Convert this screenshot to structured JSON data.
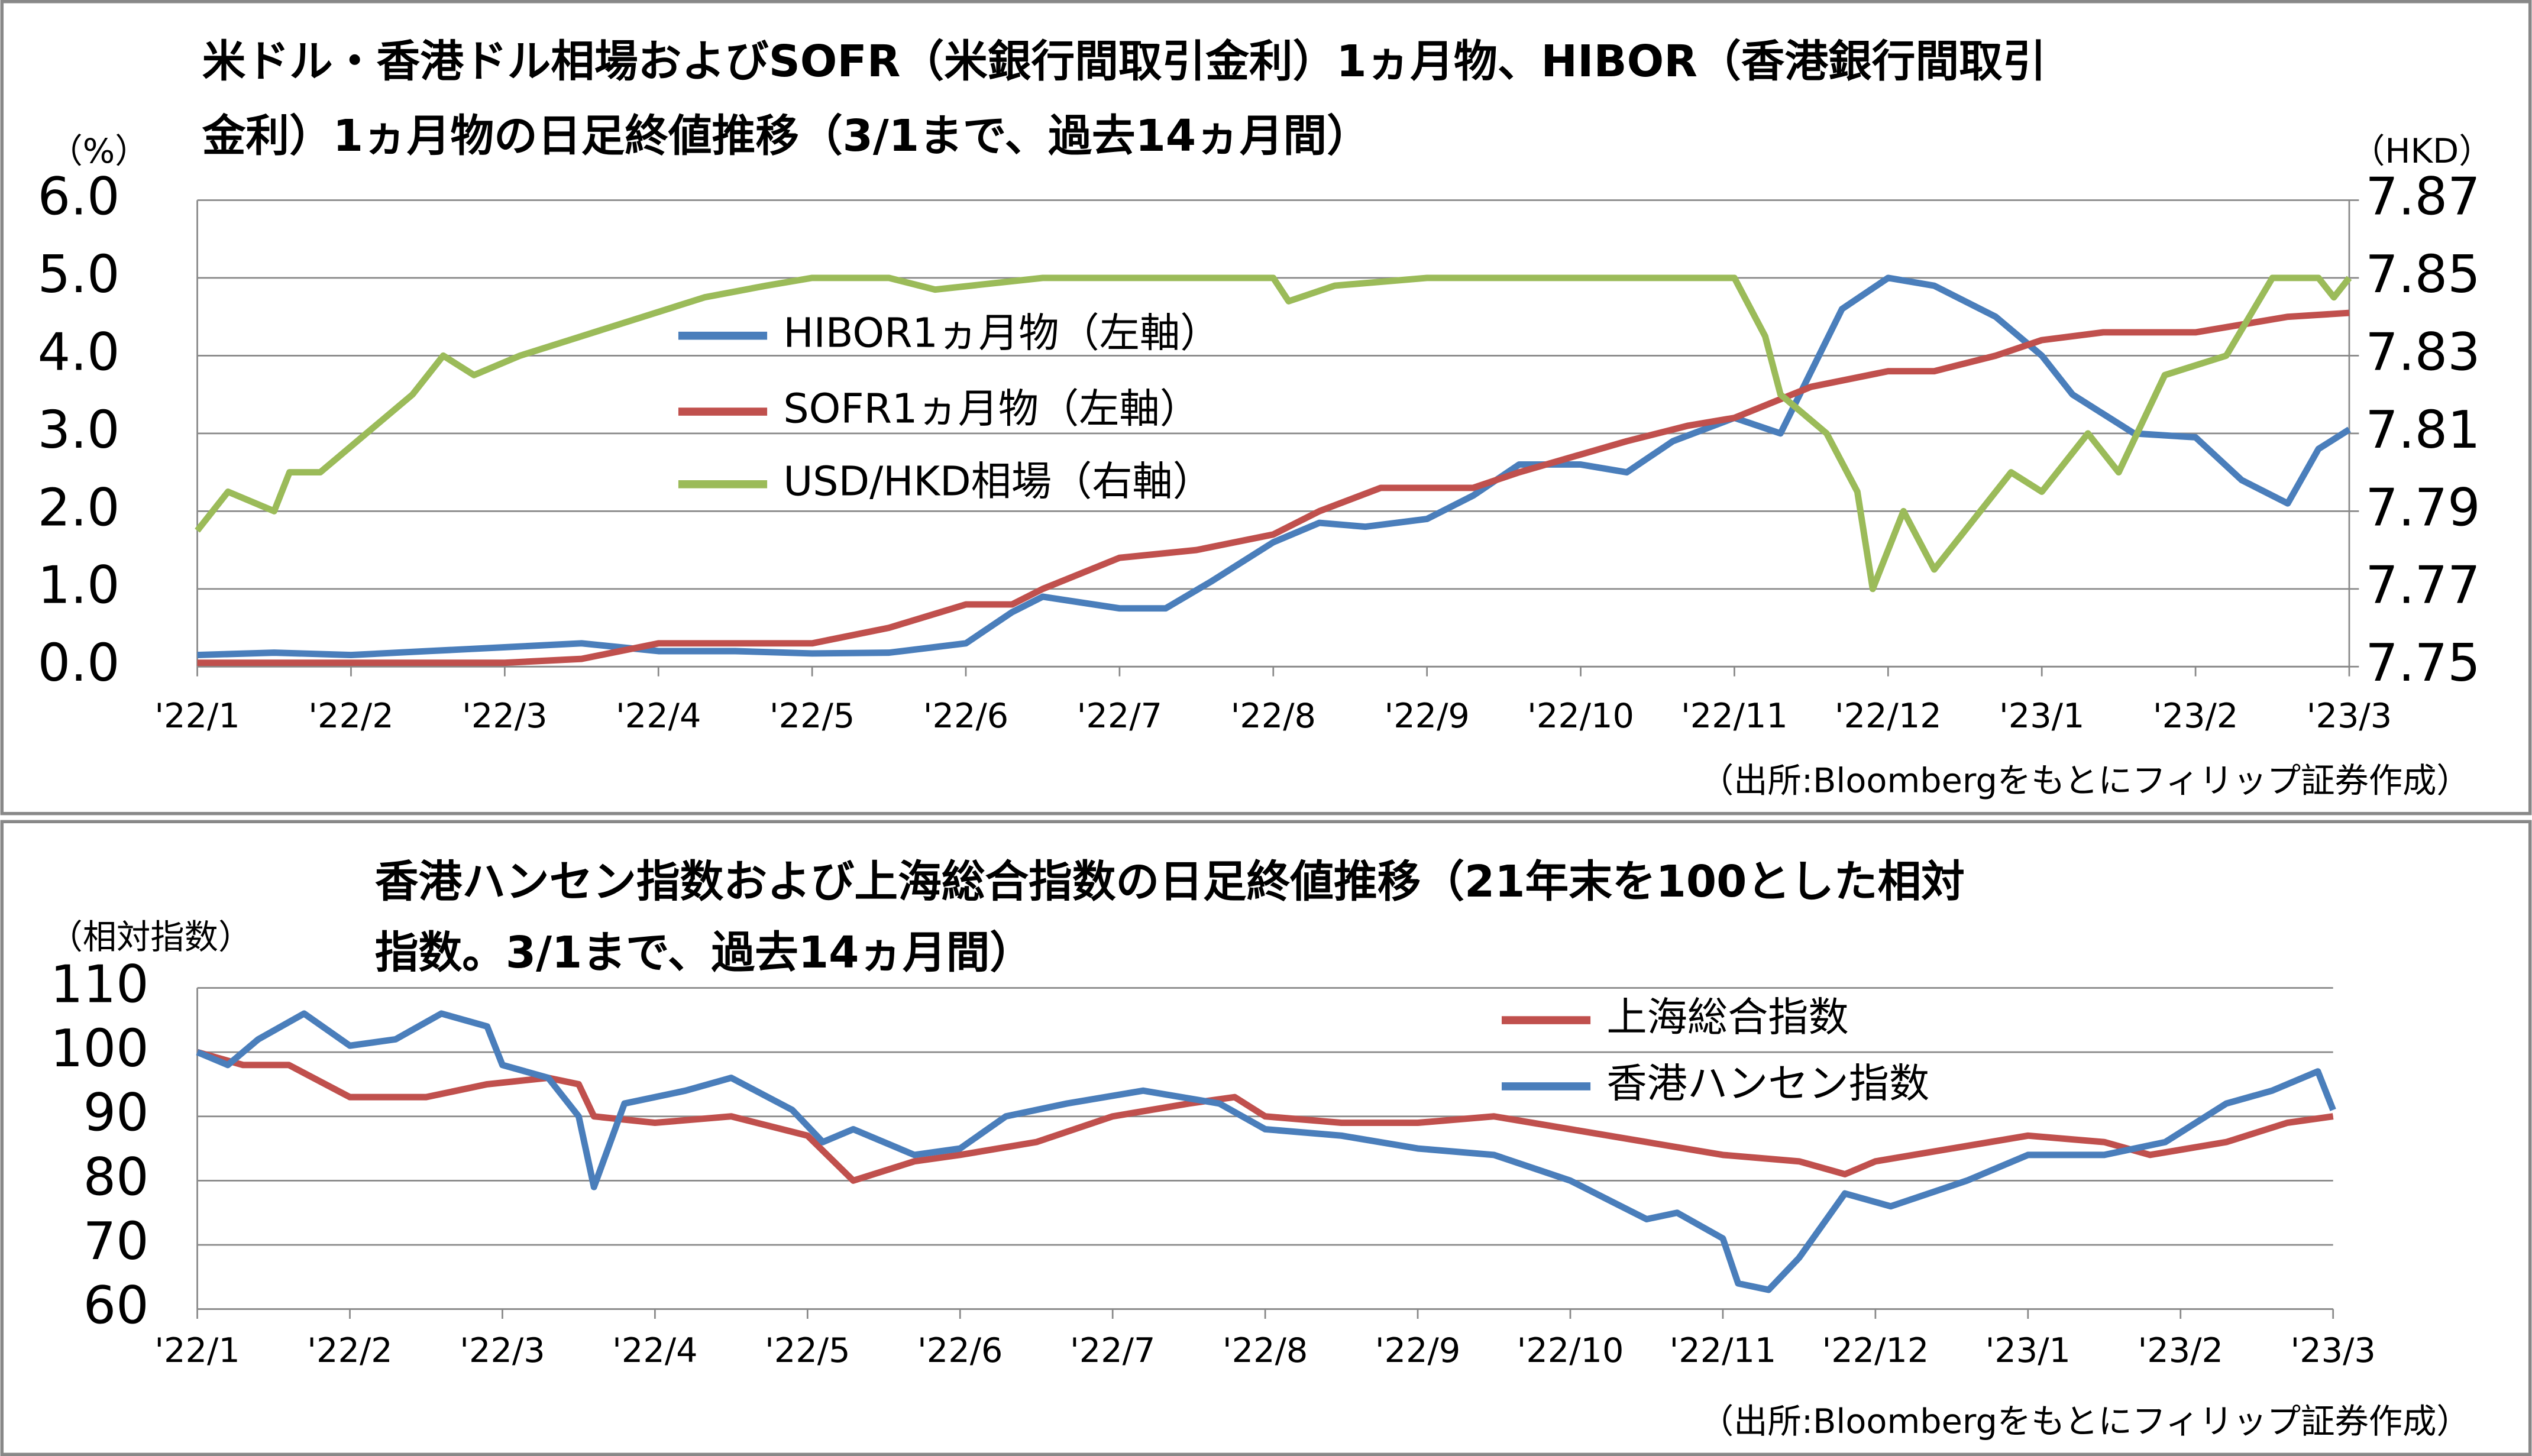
{
  "chart_data": [
    {
      "type": "line",
      "title": [
        "米ドル・香港ドル相場およびSOFR（米銀行間取引金利）1ヵ月物、HIBOR（香港銀行間取引",
        "金利）1ヵ月物の日足終値推移（3/1まで、過去14ヵ月間）"
      ],
      "y_label": "（%）",
      "y2_label": "（HKD）",
      "source": "（出所:Bloombergをもとにフィリップ証券作成）",
      "xlim": [
        0,
        14
      ],
      "xticks": [
        {
          "value": 0,
          "label": "'22/1"
        },
        {
          "value": 1,
          "label": "'22/2"
        },
        {
          "value": 2,
          "label": "'22/3"
        },
        {
          "value": 3,
          "label": "'22/4"
        },
        {
          "value": 4,
          "label": "'22/5"
        },
        {
          "value": 5,
          "label": "'22/6"
        },
        {
          "value": 6,
          "label": "'22/7"
        },
        {
          "value": 7,
          "label": "'22/8"
        },
        {
          "value": 8,
          "label": "'22/9"
        },
        {
          "value": 9,
          "label": "'22/10"
        },
        {
          "value": 10,
          "label": "'22/11"
        },
        {
          "value": 11,
          "label": "'22/12"
        },
        {
          "value": 12,
          "label": "'23/1"
        },
        {
          "value": 13,
          "label": "'23/2"
        },
        {
          "value": 14,
          "label": "'23/3"
        }
      ],
      "ylim": [
        0,
        6
      ],
      "yticks": [
        {
          "value": 0,
          "label": "0.0"
        },
        {
          "value": 1,
          "label": "1.0"
        },
        {
          "value": 2,
          "label": "2.0"
        },
        {
          "value": 3,
          "label": "3.0"
        },
        {
          "value": 4,
          "label": "4.0"
        },
        {
          "value": 5,
          "label": "5.0"
        },
        {
          "value": 6,
          "label": "6.0"
        }
      ],
      "y2lim": [
        7.75,
        7.87
      ],
      "y2ticks": [
        7.75,
        7.77,
        7.79,
        7.81,
        7.83,
        7.85,
        7.87
      ],
      "grid": true,
      "series": [
        {
          "name": "HIBOR1ヵ月物（左軸）",
          "color": "#4a7ebb",
          "x": [
            0,
            0.5,
            1,
            1.5,
            2,
            2.5,
            3,
            3.5,
            4,
            4.5,
            5,
            5.3,
            5.5,
            6,
            6.3,
            6.6,
            7,
            7.3,
            7.6,
            8,
            8.3,
            8.6,
            9,
            9.3,
            9.6,
            10,
            10.3,
            10.5,
            10.7,
            11,
            11.3,
            11.7,
            12,
            12.2,
            12.6,
            13,
            13.3,
            13.6,
            13.8,
            14
          ],
          "values": [
            0.15,
            0.18,
            0.15,
            0.2,
            0.25,
            0.3,
            0.2,
            0.2,
            0.17,
            0.18,
            0.3,
            0.7,
            0.9,
            0.75,
            0.75,
            1.1,
            1.6,
            1.85,
            1.8,
            1.9,
            2.2,
            2.6,
            2.6,
            2.5,
            2.9,
            3.2,
            3.0,
            3.8,
            4.6,
            5.0,
            4.9,
            4.5,
            4.0,
            3.5,
            3.0,
            2.95,
            2.4,
            2.1,
            2.8,
            3.05
          ]
        },
        {
          "name": "SOFR1ヵ月物（左軸）",
          "color": "#c0504d",
          "x": [
            0,
            1,
            2,
            2.5,
            3,
            4,
            4.5,
            5,
            5.3,
            5.5,
            6,
            6.5,
            7,
            7.3,
            7.7,
            8.3,
            8.6,
            9.3,
            9.7,
            10,
            10.5,
            11,
            11.3,
            11.7,
            12,
            12.4,
            13,
            13.6,
            14
          ],
          "values": [
            0.05,
            0.05,
            0.05,
            0.1,
            0.3,
            0.3,
            0.5,
            0.8,
            0.8,
            1.0,
            1.4,
            1.5,
            1.7,
            2.0,
            2.3,
            2.3,
            2.5,
            2.9,
            3.1,
            3.2,
            3.6,
            3.8,
            3.8,
            4.0,
            4.2,
            4.3,
            4.3,
            4.5,
            4.55
          ]
        },
        {
          "name": "USD/HKD相場（右軸）",
          "color": "#9bbb59",
          "axis": "y2",
          "x": [
            0,
            0.2,
            0.5,
            0.6,
            0.8,
            1.4,
            1.6,
            1.8,
            2.1,
            2.5,
            2.9,
            3.3,
            3.7,
            4,
            4.5,
            4.8,
            5.5,
            6.5,
            7,
            7.1,
            7.4,
            8,
            10,
            10.2,
            10.3,
            10.6,
            10.8,
            10.9,
            11.1,
            11.3,
            11.5,
            11.8,
            12,
            12.3,
            12.5,
            12.8,
            13.2,
            13.5,
            13.8,
            13.9,
            14
          ],
          "values": [
            7.785,
            7.795,
            7.79,
            7.8,
            7.8,
            7.82,
            7.83,
            7.825,
            7.83,
            7.835,
            7.84,
            7.845,
            7.848,
            7.85,
            7.85,
            7.847,
            7.85,
            7.85,
            7.85,
            7.844,
            7.848,
            7.85,
            7.85,
            7.835,
            7.82,
            7.81,
            7.795,
            7.77,
            7.79,
            7.775,
            7.785,
            7.8,
            7.795,
            7.81,
            7.8,
            7.825,
            7.83,
            7.85,
            7.85,
            7.845,
            7.85
          ]
        }
      ]
    },
    {
      "type": "line",
      "title": [
        "香港ハンセン指数および上海総合指数の日足終値推移（21年末を100とした相対",
        "指数。3/1まで、過去14ヵ月間）"
      ],
      "y_label": "（相対指数）",
      "source": "（出所:Bloombergをもとにフィリップ証券作成）",
      "xlim": [
        0,
        14
      ],
      "xticks": [
        {
          "value": 0,
          "label": "'22/1"
        },
        {
          "value": 1,
          "label": "'22/2"
        },
        {
          "value": 2,
          "label": "'22/3"
        },
        {
          "value": 3,
          "label": "'22/4"
        },
        {
          "value": 4,
          "label": "'22/5"
        },
        {
          "value": 5,
          "label": "'22/6"
        },
        {
          "value": 6,
          "label": "'22/7"
        },
        {
          "value": 7,
          "label": "'22/8"
        },
        {
          "value": 8,
          "label": "'22/9"
        },
        {
          "value": 9,
          "label": "'22/10"
        },
        {
          "value": 10,
          "label": "'22/11"
        },
        {
          "value": 11,
          "label": "'22/12"
        },
        {
          "value": 12,
          "label": "'23/1"
        },
        {
          "value": 13,
          "label": "'23/2"
        },
        {
          "value": 14,
          "label": "'23/3"
        }
      ],
      "ylim": [
        60,
        110
      ],
      "yticks": [
        60,
        70,
        80,
        90,
        100,
        110
      ],
      "grid": true,
      "series": [
        {
          "name": "上海総合指数",
          "color": "#c0504d",
          "x": [
            0,
            0.3,
            0.6,
            1,
            1.5,
            1.9,
            2.3,
            2.5,
            2.6,
            3,
            3.5,
            4,
            4.3,
            4.7,
            5,
            5.5,
            6,
            6.5,
            6.8,
            7,
            7.5,
            8,
            8.5,
            9,
            9.5,
            10,
            10.5,
            10.8,
            11,
            11.5,
            12,
            12.5,
            12.8,
            13.3,
            13.7,
            14
          ],
          "values": [
            100,
            98,
            98,
            93,
            93,
            95,
            96,
            95,
            90,
            89,
            90,
            87,
            80,
            83,
            84,
            86,
            90,
            92,
            93,
            90,
            89,
            89,
            90,
            88,
            86,
            84,
            83,
            81,
            83,
            85,
            87,
            86,
            84,
            86,
            89,
            90
          ]
        },
        {
          "name": "香港ハンセン指数",
          "color": "#4a7ebb",
          "x": [
            0,
            0.2,
            0.4,
            0.7,
            1,
            1.3,
            1.6,
            1.9,
            2,
            2.3,
            2.5,
            2.6,
            2.8,
            3.2,
            3.5,
            3.9,
            4.1,
            4.3,
            4.7,
            5,
            5.3,
            5.7,
            6.2,
            6.7,
            7,
            7.5,
            8,
            8.5,
            9,
            9.5,
            9.7,
            10,
            10.1,
            10.3,
            10.5,
            10.8,
            11.1,
            11.6,
            12,
            12.5,
            12.9,
            13.3,
            13.6,
            13.9,
            14
          ],
          "values": [
            100,
            98,
            102,
            106,
            101,
            102,
            106,
            104,
            98,
            96,
            90,
            79,
            92,
            94,
            96,
            91,
            86,
            88,
            84,
            85,
            90,
            92,
            94,
            92,
            88,
            87,
            85,
            84,
            80,
            74,
            75,
            71,
            64,
            63,
            68,
            78,
            76,
            80,
            84,
            84,
            86,
            92,
            94,
            97,
            91
          ]
        }
      ]
    }
  ]
}
